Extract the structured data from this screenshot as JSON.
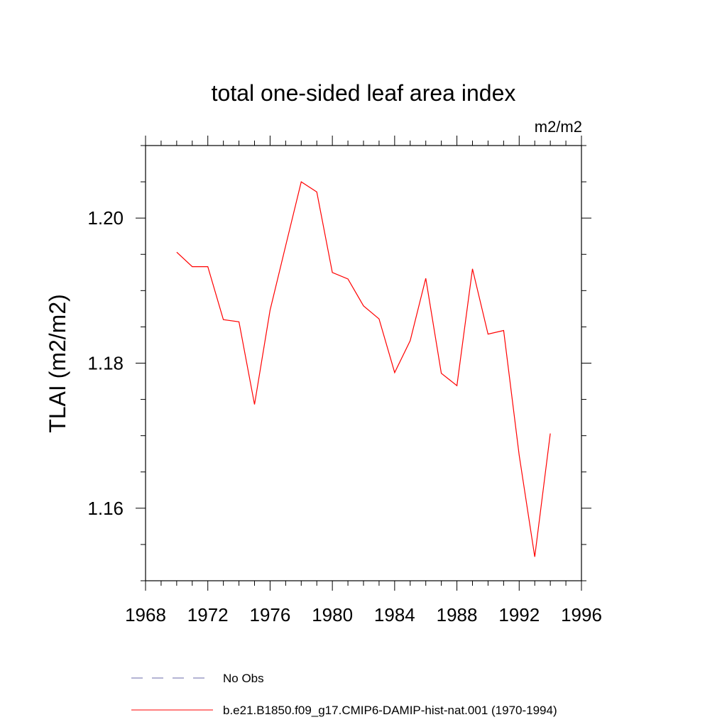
{
  "chart_data": {
    "type": "line",
    "title": "total one-sided leaf area index",
    "units": "m2/m2",
    "ylabel": "TLAI  (m2/m2)",
    "xlabel": "",
    "xlim": [
      1968,
      1996
    ],
    "ylim": [
      1.15,
      1.21
    ],
    "xticks": [
      1968,
      1972,
      1976,
      1980,
      1984,
      1988,
      1992,
      1996
    ],
    "xtick_labels": [
      "1968",
      "1972",
      "1976",
      "1980",
      "1984",
      "1988",
      "1992",
      "1996"
    ],
    "yticks": [
      1.16,
      1.18,
      1.2
    ],
    "ytick_labels": [
      "1.16",
      "1.18",
      "1.20"
    ],
    "grid": false,
    "legend_placement": "bottom",
    "series": [
      {
        "name": "b.e21.B1850.f09_g17.CMIP6-DAMIP-hist-nat.001 (1970-1994)",
        "color": "#ff0000",
        "dash": "solid",
        "x": [
          1970,
          1971,
          1972,
          1973,
          1974,
          1975,
          1976,
          1977,
          1978,
          1979,
          1980,
          1981,
          1982,
          1983,
          1984,
          1985,
          1986,
          1987,
          1988,
          1989,
          1990,
          1991,
          1992,
          1993,
          1994
        ],
        "values": [
          1.1953,
          1.1933,
          1.1933,
          1.186,
          1.1857,
          1.1743,
          1.1873,
          1.1962,
          1.205,
          1.2036,
          1.1925,
          1.1916,
          1.1879,
          1.1861,
          1.1787,
          1.1831,
          1.1917,
          1.1786,
          1.1769,
          1.193,
          1.184,
          1.1845,
          1.1673,
          1.1533,
          1.1703
        ]
      }
    ],
    "legend": [
      {
        "label": "No Obs",
        "color": "#6a6aa8",
        "dash": "dashed"
      },
      {
        "label": "b.e21.B1850.f09_g17.CMIP6-DAMIP-hist-nat.001 (1970-1994)",
        "color": "#ff0000",
        "dash": "solid"
      }
    ]
  }
}
